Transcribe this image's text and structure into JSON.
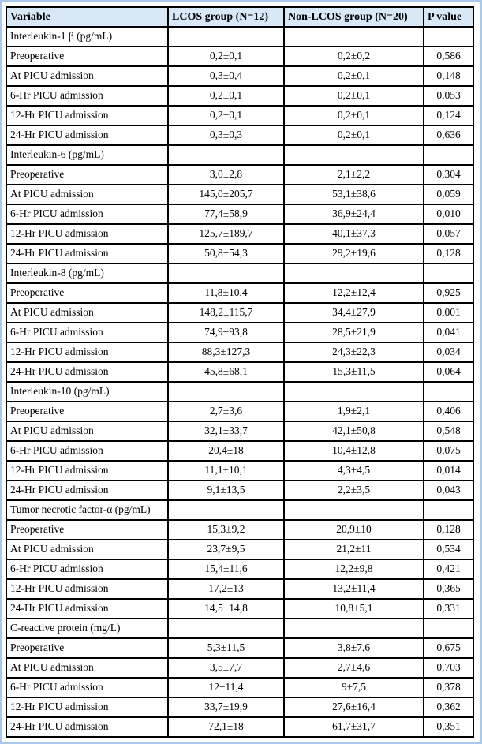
{
  "colors": {
    "frame": "#a9c9ea",
    "header_bg": "#d9e8f7",
    "grid": "#000000"
  },
  "table": {
    "columns": [
      "Variable",
      "LCOS group (N=12)",
      "Non-LCOS group (N=20)",
      "P value"
    ],
    "sections": [
      {
        "label": "Interleukin-1 β (pg/mL)",
        "rows": [
          [
            "Preoperative",
            "0,2±0,1",
            "0,2±0,2",
            "0,586"
          ],
          [
            "At PICU admission",
            "0,3±0,4",
            "0,2±0,1",
            "0,148"
          ],
          [
            "6-Hr PICU admission",
            "0,2±0,1",
            "0,2±0,1",
            "0,053"
          ],
          [
            "12-Hr PICU admission",
            "0,2±0,1",
            "0,2±0,1",
            "0,124"
          ],
          [
            "24-Hr PICU admission",
            "0,3±0,3",
            "0,2±0,1",
            "0,636"
          ]
        ]
      },
      {
        "label": "Interleukin-6 (pg/mL)",
        "rows": [
          [
            "Preoperative",
            "3,0±2,8",
            "2,1±2,2",
            "0,304"
          ],
          [
            "At PICU admission",
            "145,0±205,7",
            "53,1±38,6",
            "0,059"
          ],
          [
            "6-Hr PICU admission",
            "77,4±58,9",
            "36,9±24,4",
            "0,010"
          ],
          [
            "12-Hr PICU admission",
            "125,7±189,7",
            "40,1±37,3",
            "0,057"
          ],
          [
            "24-Hr PICU admission",
            "50,8±54,3",
            "29,2±19,6",
            "0,128"
          ]
        ]
      },
      {
        "label": "Interleukin-8 (pg/mL)",
        "rows": [
          [
            "Preoperative",
            "11,8±10,4",
            "12,2±12,4",
            "0,925"
          ],
          [
            "At PICU admission",
            "148,2±115,7",
            "34,4±27,9",
            "0,001"
          ],
          [
            "6-Hr PICU admission",
            "74,9±93,8",
            "28,5±21,9",
            "0,041"
          ],
          [
            "12-Hr PICU admission",
            "88,3±127,3",
            "24,3±22,3",
            "0,034"
          ],
          [
            "24-Hr PICU admission",
            "45,8±68,1",
            "15,3±11,5",
            "0,064"
          ]
        ]
      },
      {
        "label": "Interleukin-10 (pg/mL)",
        "rows": [
          [
            "Preoperative",
            "2,7±3,6",
            "1,9±2,1",
            "0,406"
          ],
          [
            "At PICU admission",
            "32,1±33,7",
            "42,1±50,8",
            "0,548"
          ],
          [
            "6-Hr PICU admission",
            "20,4±18",
            "10,4±12,8",
            "0,075"
          ],
          [
            "12-Hr PICU admission",
            "11,1±10,1",
            "4,3±4,5",
            "0,014"
          ],
          [
            "24-Hr PICU admission",
            "9,1±13,5",
            "2,2±3,5",
            "0,043"
          ]
        ]
      },
      {
        "label": "Tumor necrotic factor-α (pg/mL)",
        "rows": [
          [
            "Preoperative",
            "15,3±9,2",
            "20,9±10",
            "0,128"
          ],
          [
            "At PICU admission",
            "23,7±9,5",
            "21,2±11",
            "0,534"
          ],
          [
            "6-Hr PICU admission",
            "15,4±11,6",
            "12,2±9,8",
            "0,421"
          ],
          [
            "12-Hr PICU admission",
            "17,2±13",
            "13,2±11,4",
            "0,365"
          ],
          [
            "24-Hr PICU admission",
            "14,5±14,8",
            "10,8±5,1",
            "0,331"
          ]
        ]
      },
      {
        "label": "C-reactive protein (mg/L)",
        "rows": [
          [
            "Preoperative",
            "5,3±11,5",
            "3,8±7,6",
            "0,675"
          ],
          [
            "At PICU admission",
            "3,5±7,7",
            "2,7±4,6",
            "0,703"
          ],
          [
            "6-Hr PICU admission",
            "12±11,4",
            "9±7,5",
            "0,378"
          ],
          [
            "12-Hr PICU admission",
            "33,7±19,9",
            "27,6±16,4",
            "0,362"
          ],
          [
            "24-Hr PICU admission",
            "72,1±18",
            "61,7±31,7",
            "0,351"
          ]
        ]
      }
    ]
  }
}
